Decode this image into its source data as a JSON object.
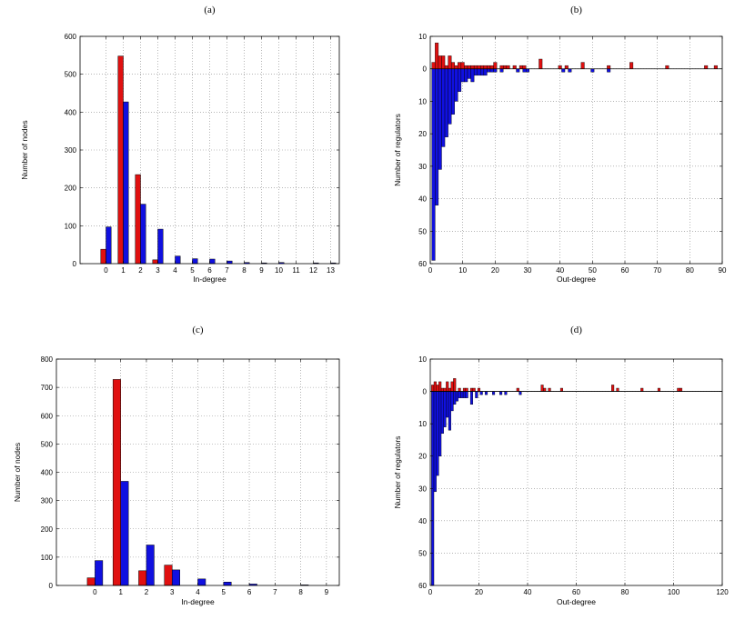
{
  "colors": {
    "series_a": "#e01010",
    "series_b": "#1010e0",
    "grid": "#888888"
  },
  "chart_data": [
    {
      "type": "bar",
      "panel_label": "(a)",
      "title": "",
      "xlabel": "In-degree",
      "ylabel": "Number of nodes",
      "categories": [
        "0",
        "1",
        "2",
        "3",
        "4",
        "5",
        "6",
        "7",
        "8",
        "9",
        "10",
        "11",
        "12",
        "13"
      ],
      "x_range": [
        -1.5,
        13.5
      ],
      "ylim": [
        0,
        600
      ],
      "y_ticks": [
        0,
        100,
        200,
        300,
        400,
        500,
        600
      ],
      "grid": true,
      "legend": "none",
      "series": [
        {
          "values": [
            38,
            548,
            235,
            10,
            0,
            0,
            0,
            0,
            0,
            0,
            0,
            0,
            0,
            0
          ]
        },
        {
          "values": [
            97,
            427,
            157,
            91,
            20,
            13,
            12,
            7,
            3,
            2,
            3,
            0,
            2,
            2
          ]
        }
      ]
    },
    {
      "type": "bar",
      "panel_label": "(b)",
      "title": "",
      "xlabel": "Out-degree",
      "ylabel": "Number of regulators",
      "xlim": [
        0,
        90
      ],
      "x_ticks": [
        0,
        10,
        20,
        30,
        40,
        50,
        60,
        70,
        80,
        90
      ],
      "ylim": [
        -10,
        60
      ],
      "y_ticks": [
        -10,
        0,
        10,
        20,
        30,
        40,
        50,
        60
      ],
      "y_tick_labels": [
        "10",
        "0",
        "10",
        "20",
        "30",
        "40",
        "50",
        "60"
      ],
      "y_axis_reversed": true,
      "grid": true,
      "legend": "none",
      "series": [
        {
          "direction": "up",
          "x": [
            1,
            2,
            3,
            4,
            5,
            6,
            7,
            8,
            9,
            10,
            11,
            12,
            13,
            14,
            15,
            16,
            17,
            18,
            19,
            20,
            22,
            23,
            24,
            26,
            28,
            29,
            34,
            40,
            42,
            47,
            55,
            62,
            73,
            85,
            88
          ],
          "values": [
            2,
            8,
            4,
            4,
            1,
            4,
            2,
            1,
            2,
            2,
            1,
            1,
            1,
            1,
            1,
            1,
            1,
            1,
            1,
            2,
            1,
            1,
            1,
            1,
            1,
            1,
            3,
            1,
            1,
            2,
            1,
            2,
            1,
            1,
            1
          ]
        },
        {
          "direction": "down",
          "x": [
            1,
            2,
            3,
            4,
            5,
            6,
            7,
            8,
            9,
            10,
            11,
            12,
            13,
            14,
            15,
            16,
            17,
            18,
            19,
            20,
            22,
            27,
            29,
            30,
            41,
            43,
            50,
            55
          ],
          "values": [
            59,
            42,
            31,
            24,
            21,
            17,
            14,
            10,
            7,
            4,
            4,
            3,
            4,
            2,
            2,
            2,
            2,
            1,
            1,
            1,
            1,
            1,
            1,
            1,
            1,
            1,
            1,
            1
          ]
        }
      ]
    },
    {
      "type": "bar",
      "panel_label": "(c)",
      "title": "",
      "xlabel": "In-degree",
      "ylabel": "Number of nodes",
      "categories": [
        "0",
        "1",
        "2",
        "3",
        "4",
        "5",
        "6",
        "7",
        "8",
        "9"
      ],
      "x_range": [
        -1.5,
        9.5
      ],
      "ylim": [
        0,
        800
      ],
      "y_ticks": [
        0,
        100,
        200,
        300,
        400,
        500,
        600,
        700,
        800
      ],
      "grid": true,
      "legend": "none",
      "series": [
        {
          "values": [
            27,
            728,
            52,
            72,
            0,
            0,
            0,
            0,
            0,
            0
          ]
        },
        {
          "values": [
            88,
            368,
            143,
            55,
            23,
            12,
            5,
            0,
            2,
            0
          ]
        }
      ]
    },
    {
      "type": "bar",
      "panel_label": "(d)",
      "title": "",
      "xlabel": "Out-degree",
      "ylabel": "Number of regulators",
      "xlim": [
        0,
        120
      ],
      "x_ticks": [
        0,
        20,
        40,
        60,
        80,
        100,
        120
      ],
      "ylim": [
        -10,
        60
      ],
      "y_ticks": [
        -10,
        0,
        10,
        20,
        30,
        40,
        50,
        60
      ],
      "y_tick_labels": [
        "10",
        "0",
        "10",
        "20",
        "30",
        "40",
        "50",
        "60"
      ],
      "y_axis_reversed": true,
      "grid": true,
      "legend": "none",
      "series": [
        {
          "direction": "up",
          "x": [
            1,
            2,
            3,
            4,
            5,
            6,
            7,
            8,
            9,
            10,
            12,
            14,
            15,
            17,
            18,
            20,
            36,
            46,
            47,
            49,
            54,
            75,
            77,
            87,
            94,
            102,
            103
          ],
          "values": [
            2,
            3,
            2,
            3,
            1,
            1,
            3,
            1,
            3,
            4,
            1,
            1,
            1,
            1,
            1,
            1,
            1,
            2,
            1,
            1,
            1,
            2,
            1,
            1,
            1,
            1,
            1
          ]
        },
        {
          "direction": "down",
          "x": [
            1,
            2,
            3,
            4,
            5,
            6,
            7,
            8,
            9,
            10,
            11,
            12,
            13,
            14,
            15,
            17,
            19,
            21,
            23,
            26,
            29,
            31,
            37
          ],
          "values": [
            60,
            31,
            26,
            20,
            13,
            11,
            8,
            12,
            6,
            4,
            3,
            2,
            2,
            2,
            2,
            4,
            2,
            1,
            1,
            1,
            1,
            1,
            1
          ]
        }
      ]
    }
  ]
}
